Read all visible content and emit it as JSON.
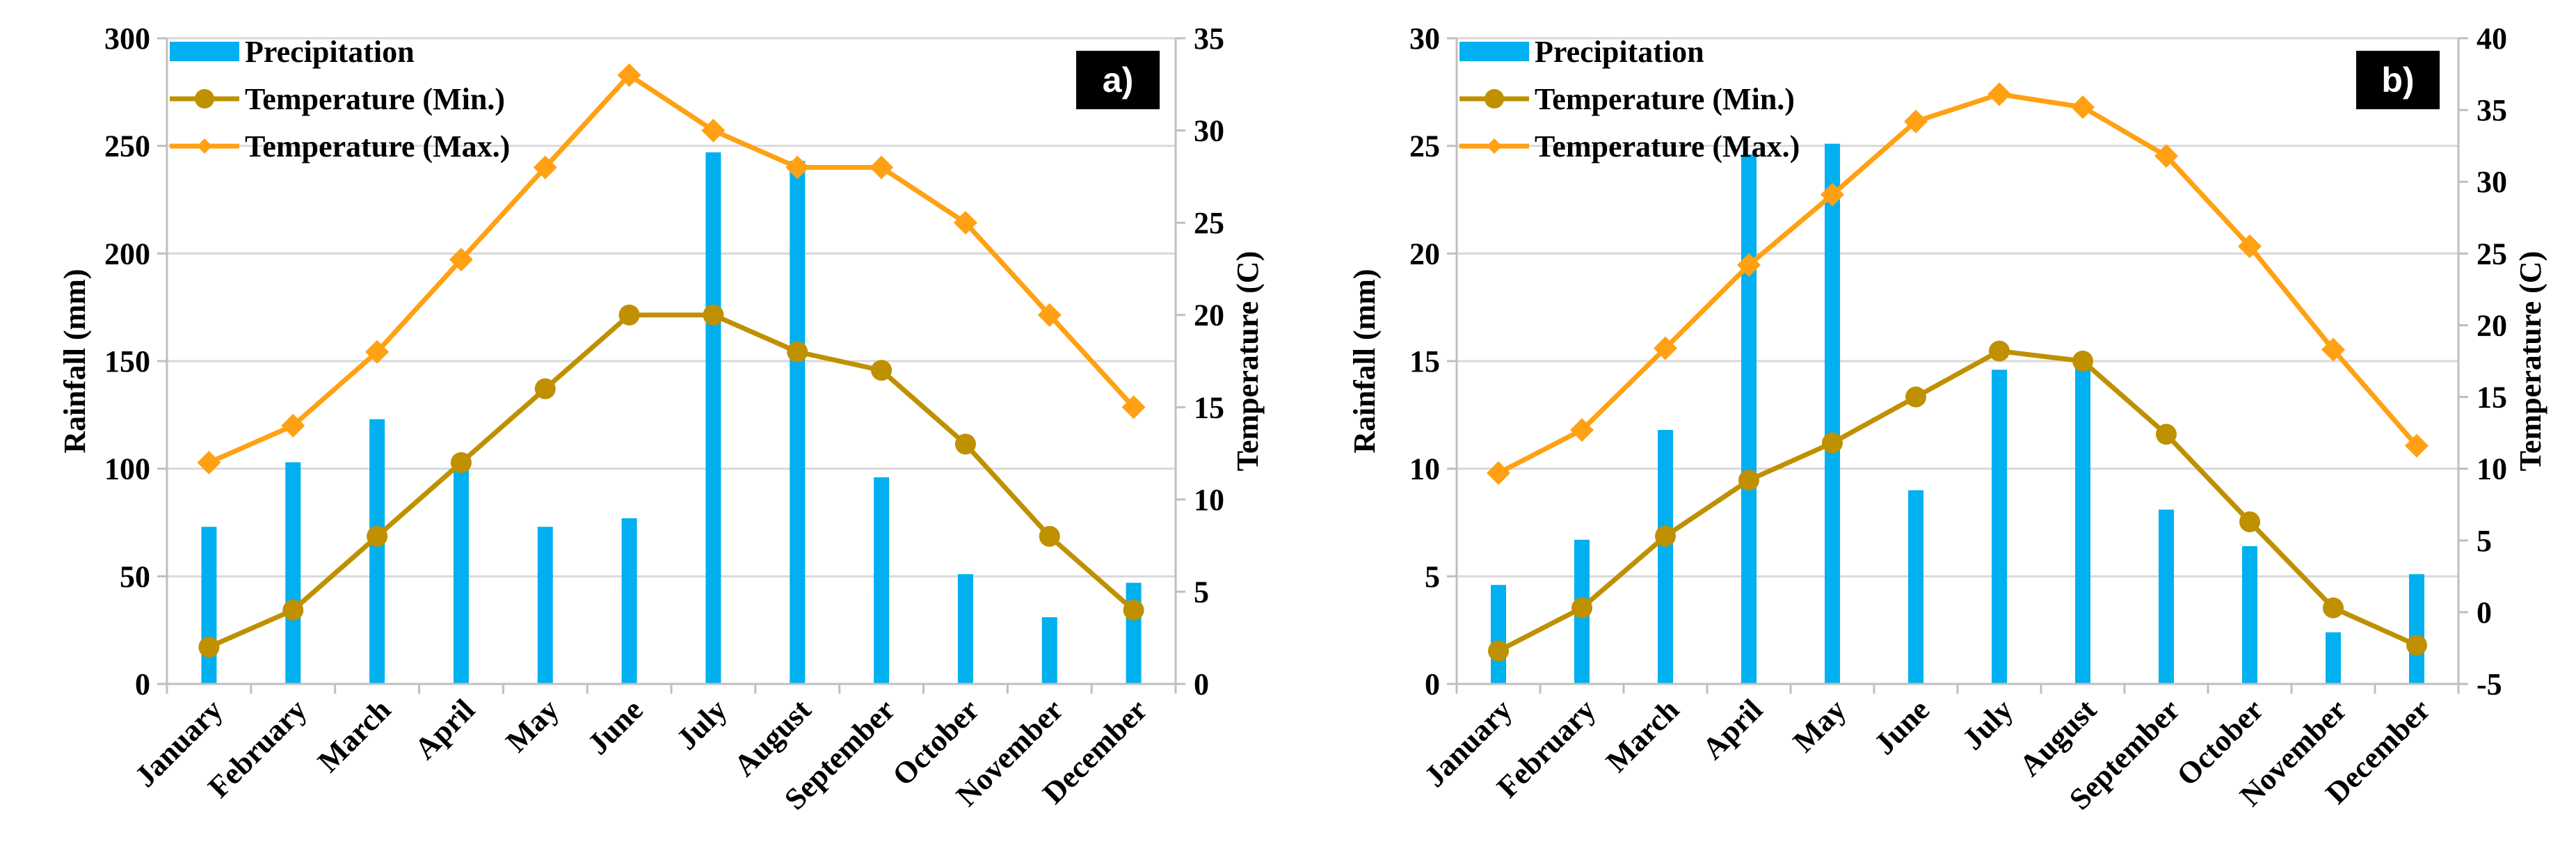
{
  "colors": {
    "precipitation": "#00b0f0",
    "temp_min": "#bf9000",
    "temp_max": "#ffa113",
    "grid": "#d9d9d9",
    "axis": "#bfbfbf",
    "label_bg": "#000000",
    "label_text": "#ffffff"
  },
  "chart_data": [
    {
      "type": "bar+line",
      "panel_label": "a)",
      "categories": [
        "January",
        "February",
        "March",
        "April",
        "May",
        "June",
        "July",
        "August",
        "September",
        "October",
        "November",
        "December"
      ],
      "ylabel_left": "Rainfall (mm)",
      "ylabel_right": "Temperature (C)",
      "ylim_left": [
        0,
        300
      ],
      "yticks_left": [
        0,
        50,
        100,
        150,
        200,
        250,
        300
      ],
      "ylim_right": [
        0,
        35
      ],
      "yticks_right": [
        0,
        5,
        10,
        15,
        20,
        25,
        30,
        35
      ],
      "grid": true,
      "legend_position": "top-left",
      "series": [
        {
          "name": "Precipitation",
          "kind": "bar",
          "axis": "left",
          "values": [
            73,
            103,
            123,
            103,
            73,
            77,
            247,
            243,
            96,
            51,
            31,
            47
          ]
        },
        {
          "name": "Temperature (Min.)",
          "kind": "line",
          "marker": "circle",
          "axis": "right",
          "values": [
            2,
            4,
            8,
            12,
            16,
            20,
            20,
            18,
            17,
            13,
            8,
            4
          ]
        },
        {
          "name": "Temperature (Max.)",
          "kind": "line",
          "marker": "diamond",
          "axis": "right",
          "values": [
            12,
            14,
            18,
            23,
            28,
            33,
            30,
            28,
            28,
            25,
            20,
            15
          ]
        }
      ]
    },
    {
      "type": "bar+line",
      "panel_label": "b)",
      "categories": [
        "January",
        "February",
        "March",
        "April",
        "May",
        "June",
        "July",
        "August",
        "September",
        "October",
        "November",
        "December"
      ],
      "ylabel_left": "Rainfall (mm)",
      "ylabel_right": "Temperature (C)",
      "ylim_left": [
        0,
        30
      ],
      "yticks_left": [
        0,
        5,
        10,
        15,
        20,
        25,
        30
      ],
      "ylim_right": [
        -5,
        40
      ],
      "yticks_right": [
        -5,
        0,
        5,
        10,
        15,
        20,
        25,
        30,
        35,
        40
      ],
      "grid": true,
      "legend_position": "top-left",
      "series": [
        {
          "name": "Precipitation",
          "kind": "bar",
          "axis": "left",
          "values": [
            4.6,
            6.7,
            11.8,
            24.6,
            25.1,
            9.0,
            14.6,
            15.3,
            8.1,
            6.4,
            2.4,
            5.1
          ]
        },
        {
          "name": "Temperature (Min.)",
          "kind": "line",
          "marker": "circle",
          "axis": "right",
          "values": [
            -2.7,
            0.3,
            5.3,
            9.2,
            11.8,
            15.0,
            18.2,
            17.5,
            12.4,
            6.3,
            0.3,
            -2.3
          ]
        },
        {
          "name": "Temperature (Max.)",
          "kind": "line",
          "marker": "diamond",
          "axis": "right",
          "values": [
            9.7,
            12.7,
            18.4,
            24.2,
            29.1,
            34.2,
            36.1,
            35.2,
            31.8,
            25.5,
            18.3,
            11.6
          ]
        }
      ]
    }
  ]
}
